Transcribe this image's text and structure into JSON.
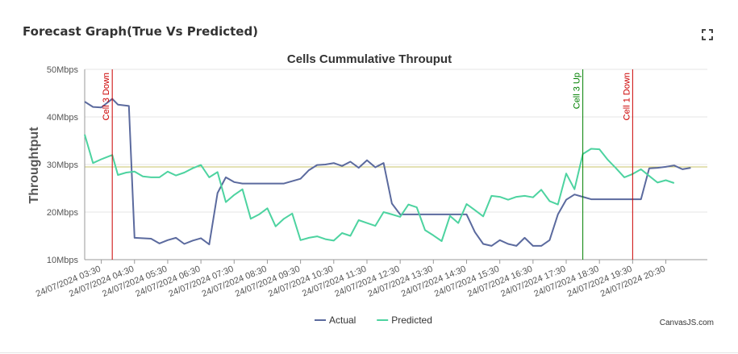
{
  "page": {
    "title": "Forecast Graph(True Vs Predicted)"
  },
  "chart_data": {
    "type": "line",
    "title": "Cells Cummulative Throuput",
    "ylabel": "Throughtput",
    "xlabel": "",
    "ylim": [
      10,
      50
    ],
    "yticks": [
      "10Mbps",
      "20Mbps",
      "30Mbps",
      "40Mbps",
      "50Mbps"
    ],
    "xticks": [
      "24/07/2024 03:30",
      "24/07/2024 04:30",
      "24/07/2024 05:30",
      "24/07/2024 06:30",
      "24/07/2024 07:30",
      "24/07/2024 08:30",
      "24/07/2024 09:30",
      "24/07/2024 10:30",
      "24/07/2024 11:30",
      "24/07/2024 12:30",
      "24/07/2024 13:30",
      "24/07/2024 14:30",
      "24/07/2024 15:30",
      "24/07/2024 16:30",
      "24/07/2024 17:30",
      "24/07/2024 18:30",
      "24/07/2024 19:30",
      "24/07/2024 20:30"
    ],
    "x_unit": "hours since 24/07/2024 03:00 (10-minute steps)",
    "x_start": 3.0,
    "x_end": 21.75,
    "series": [
      {
        "name": "Actual",
        "color": "#5b6a9e",
        "points": [
          [
            3.0,
            43.2
          ],
          [
            3.25,
            42.1
          ],
          [
            3.5,
            42.0
          ],
          [
            3.83,
            43.8
          ],
          [
            4.0,
            42.6
          ],
          [
            4.33,
            42.3
          ],
          [
            4.5,
            14.6
          ],
          [
            5.0,
            14.4
          ],
          [
            5.25,
            13.4
          ],
          [
            5.5,
            14.1
          ],
          [
            5.75,
            14.6
          ],
          [
            6.0,
            13.3
          ],
          [
            6.25,
            14.0
          ],
          [
            6.5,
            14.5
          ],
          [
            6.75,
            13.2
          ],
          [
            7.0,
            24.0
          ],
          [
            7.25,
            27.3
          ],
          [
            7.5,
            26.3
          ],
          [
            7.75,
            26.0
          ],
          [
            8.0,
            26.0
          ],
          [
            8.5,
            26.0
          ],
          [
            9.0,
            26.0
          ],
          [
            9.5,
            27.0
          ],
          [
            9.75,
            28.8
          ],
          [
            10.0,
            29.9
          ],
          [
            10.25,
            30.0
          ],
          [
            10.5,
            30.3
          ],
          [
            10.75,
            29.7
          ],
          [
            11.0,
            30.6
          ],
          [
            11.25,
            29.3
          ],
          [
            11.5,
            30.9
          ],
          [
            11.75,
            29.4
          ],
          [
            12.0,
            30.3
          ],
          [
            12.25,
            21.8
          ],
          [
            12.5,
            19.5
          ],
          [
            13.0,
            19.5
          ],
          [
            13.5,
            19.5
          ],
          [
            14.0,
            19.5
          ],
          [
            14.5,
            19.5
          ],
          [
            14.75,
            15.8
          ],
          [
            15.0,
            13.3
          ],
          [
            15.25,
            12.9
          ],
          [
            15.5,
            14.1
          ],
          [
            15.75,
            13.3
          ],
          [
            16.0,
            12.9
          ],
          [
            16.25,
            14.6
          ],
          [
            16.5,
            12.9
          ],
          [
            16.75,
            12.9
          ],
          [
            17.0,
            14.1
          ],
          [
            17.25,
            19.5
          ],
          [
            17.5,
            22.6
          ],
          [
            17.75,
            23.7
          ],
          [
            18.0,
            23.2
          ],
          [
            18.25,
            22.7
          ],
          [
            18.5,
            22.7
          ],
          [
            19.0,
            22.7
          ],
          [
            19.5,
            22.7
          ],
          [
            19.75,
            22.7
          ],
          [
            20.0,
            29.2
          ],
          [
            20.25,
            29.3
          ],
          [
            20.5,
            29.5
          ],
          [
            20.75,
            29.8
          ],
          [
            21.0,
            29.0
          ],
          [
            21.25,
            29.3
          ]
        ]
      },
      {
        "name": "Predicted",
        "color": "#4dd3a0",
        "points": [
          [
            3.0,
            36.3
          ],
          [
            3.25,
            30.3
          ],
          [
            3.5,
            31.1
          ],
          [
            3.83,
            32.0
          ],
          [
            4.0,
            27.8
          ],
          [
            4.25,
            28.3
          ],
          [
            4.5,
            28.5
          ],
          [
            4.75,
            27.5
          ],
          [
            5.0,
            27.3
          ],
          [
            5.25,
            27.3
          ],
          [
            5.5,
            28.5
          ],
          [
            5.75,
            27.7
          ],
          [
            6.0,
            28.3
          ],
          [
            6.25,
            29.2
          ],
          [
            6.5,
            29.9
          ],
          [
            6.75,
            27.3
          ],
          [
            7.0,
            28.4
          ],
          [
            7.25,
            22.1
          ],
          [
            7.5,
            23.6
          ],
          [
            7.75,
            24.8
          ],
          [
            8.0,
            18.6
          ],
          [
            8.25,
            19.5
          ],
          [
            8.5,
            20.8
          ],
          [
            8.75,
            17.0
          ],
          [
            9.0,
            18.6
          ],
          [
            9.25,
            19.7
          ],
          [
            9.5,
            14.1
          ],
          [
            9.75,
            14.6
          ],
          [
            10.0,
            14.9
          ],
          [
            10.25,
            14.3
          ],
          [
            10.5,
            14.0
          ],
          [
            10.75,
            15.6
          ],
          [
            11.0,
            15.0
          ],
          [
            11.25,
            18.3
          ],
          [
            11.5,
            17.7
          ],
          [
            11.75,
            17.1
          ],
          [
            12.0,
            20.0
          ],
          [
            12.25,
            19.5
          ],
          [
            12.5,
            19.0
          ],
          [
            12.75,
            21.6
          ],
          [
            13.0,
            21.0
          ],
          [
            13.25,
            16.2
          ],
          [
            13.5,
            15.1
          ],
          [
            13.75,
            13.9
          ],
          [
            14.0,
            19.2
          ],
          [
            14.25,
            17.7
          ],
          [
            14.5,
            21.7
          ],
          [
            14.75,
            20.4
          ],
          [
            15.0,
            19.1
          ],
          [
            15.25,
            23.4
          ],
          [
            15.5,
            23.2
          ],
          [
            15.75,
            22.6
          ],
          [
            16.0,
            23.2
          ],
          [
            16.25,
            23.4
          ],
          [
            16.5,
            23.1
          ],
          [
            16.75,
            24.7
          ],
          [
            17.0,
            22.3
          ],
          [
            17.25,
            21.6
          ],
          [
            17.5,
            28.1
          ],
          [
            17.75,
            24.8
          ],
          [
            18.0,
            32.2
          ],
          [
            18.25,
            33.3
          ],
          [
            18.5,
            33.2
          ],
          [
            18.75,
            31.0
          ],
          [
            19.0,
            29.2
          ],
          [
            19.25,
            27.3
          ],
          [
            19.5,
            28.0
          ],
          [
            19.75,
            29.0
          ],
          [
            20.0,
            27.6
          ],
          [
            20.25,
            26.2
          ],
          [
            20.5,
            26.7
          ],
          [
            20.75,
            26.1
          ]
        ]
      }
    ],
    "reference_line": {
      "value": 29.5,
      "color": "#c9c36a"
    },
    "markers": [
      {
        "label": "Cell 3 Down",
        "x": 3.83,
        "color": "#cc0000"
      },
      {
        "label": "Cell 3 Up",
        "x": 18.0,
        "color": "#008000"
      },
      {
        "label": "Cell 1 Down",
        "x": 19.5,
        "color": "#cc0000"
      }
    ],
    "legend_position": "bottom",
    "credit": "CanvasJS.com"
  }
}
